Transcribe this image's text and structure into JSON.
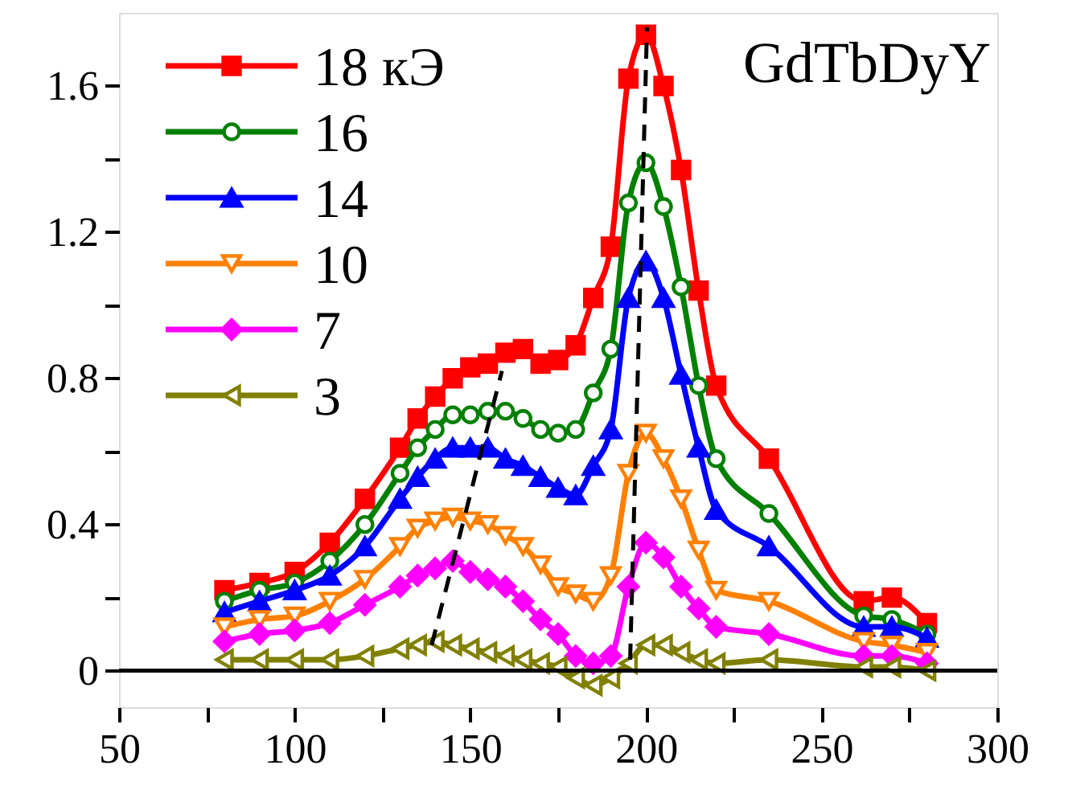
{
  "chart_data": {
    "type": "line",
    "annotations": [
      "GdTbDyY"
    ],
    "x": [
      80,
      90,
      100,
      110,
      120,
      130,
      135,
      140,
      145,
      150,
      155,
      160,
      165,
      170,
      175,
      180,
      185,
      190,
      195,
      200,
      205,
      210,
      215,
      220,
      235,
      262,
      270,
      280
    ],
    "series": [
      {
        "name": "18 кЭ",
        "color": "#ff0000",
        "marker": "square",
        "values": [
          0.22,
          0.24,
          0.27,
          0.35,
          0.47,
          0.61,
          0.69,
          0.75,
          0.8,
          0.83,
          0.84,
          0.87,
          0.88,
          0.84,
          0.85,
          0.89,
          1.02,
          1.16,
          1.62,
          1.74,
          1.6,
          1.37,
          1.04,
          0.78,
          0.58,
          0.19,
          0.2,
          0.13
        ]
      },
      {
        "name": "16",
        "color": "#008000",
        "marker": "circle",
        "values": [
          0.19,
          0.22,
          0.24,
          0.3,
          0.4,
          0.54,
          0.61,
          0.66,
          0.7,
          0.7,
          0.71,
          0.71,
          0.69,
          0.66,
          0.65,
          0.66,
          0.76,
          0.88,
          1.28,
          1.39,
          1.27,
          1.05,
          0.78,
          0.58,
          0.43,
          0.15,
          0.14,
          0.1
        ]
      },
      {
        "name": "14",
        "color": "#0000ff",
        "marker": "triangle",
        "values": [
          0.16,
          0.19,
          0.22,
          0.26,
          0.34,
          0.47,
          0.53,
          0.58,
          0.61,
          0.61,
          0.61,
          0.58,
          0.56,
          0.53,
          0.5,
          0.48,
          0.56,
          0.66,
          1.02,
          1.12,
          1.02,
          0.81,
          0.61,
          0.44,
          0.34,
          0.12,
          0.12,
          0.09
        ]
      },
      {
        "name": "10",
        "color": "#ff8000",
        "marker": "triangle-down",
        "values": [
          0.12,
          0.14,
          0.15,
          0.19,
          0.25,
          0.34,
          0.39,
          0.41,
          0.42,
          0.41,
          0.4,
          0.37,
          0.34,
          0.29,
          0.23,
          0.21,
          0.19,
          0.26,
          0.54,
          0.65,
          0.58,
          0.47,
          0.33,
          0.22,
          0.19,
          0.08,
          0.07,
          0.05
        ]
      },
      {
        "name": "7",
        "color": "#ff00ff",
        "marker": "diamond",
        "values": [
          0.08,
          0.1,
          0.11,
          0.13,
          0.18,
          0.23,
          0.26,
          0.28,
          0.3,
          0.27,
          0.25,
          0.23,
          0.19,
          0.14,
          0.1,
          0.04,
          0.02,
          0.04,
          0.23,
          0.35,
          0.31,
          0.23,
          0.17,
          0.12,
          0.1,
          0.04,
          0.04,
          0.02
        ]
      },
      {
        "name": "3",
        "color": "#808000",
        "marker": "triangle-left",
        "values": [
          0.03,
          0.03,
          0.03,
          0.03,
          0.04,
          0.06,
          0.07,
          0.08,
          0.07,
          0.06,
          0.05,
          0.04,
          0.03,
          0.02,
          0.01,
          -0.02,
          -0.04,
          -0.02,
          0.02,
          0.07,
          0.07,
          0.05,
          0.03,
          0.02,
          0.03,
          0.01,
          0.01,
          0.0
        ]
      },
      {
        "type": "line",
        "color": "#000000",
        "marker": "none",
        "line_style": "dashed",
        "x": [
          139,
          159
        ],
        "values": [
          0.07,
          0.82
        ]
      },
      {
        "type": "line",
        "color": "#000000",
        "marker": "none",
        "line_style": "dashed",
        "x": [
          195.5,
          200.3
        ],
        "values": [
          0.03,
          1.76
        ]
      }
    ],
    "xlim": [
      50,
      300
    ],
    "xticks": [
      50,
      {
        "value": 75,
        "label": null
      },
      100,
      {
        "value": 125,
        "label": null
      },
      150,
      {
        "value": 175,
        "label": null
      },
      200,
      {
        "value": 225,
        "label": null
      },
      250,
      {
        "value": 275,
        "label": null
      },
      300
    ],
    "ylim": [
      -0.1,
      1.8
    ],
    "yticks": [
      0,
      {
        "value": 0.2,
        "label": null
      },
      0.4,
      {
        "value": 0.6,
        "label": null
      },
      0.8,
      {
        "value": 1.0,
        "label": null
      },
      1.2,
      {
        "value": 1.4,
        "label": null
      },
      1.6
    ],
    "ref_lines": [
      {
        "axis": "y",
        "value": 0,
        "color": "#000000"
      }
    ],
    "grid": false,
    "legend": "top left"
  }
}
